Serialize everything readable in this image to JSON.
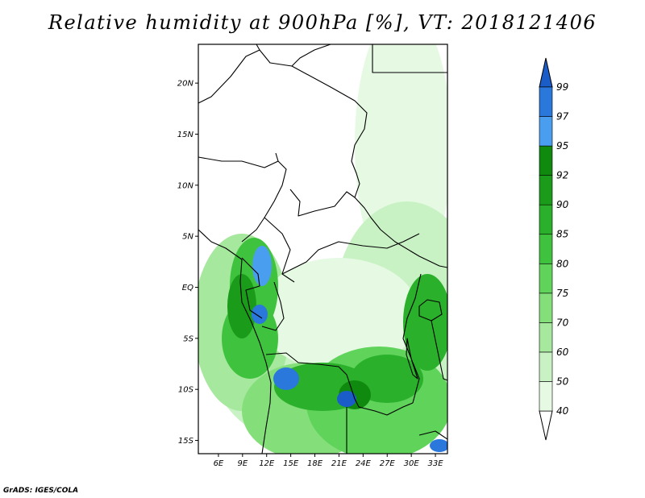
{
  "title": "Relative humidity at 900hPa [%], VT: 2018121406",
  "footer": "GrADS: IGES/COLA",
  "axes": {
    "lat_ticks": [
      {
        "label": "20N",
        "value": 20
      },
      {
        "label": "15N",
        "value": 15
      },
      {
        "label": "10N",
        "value": 10
      },
      {
        "label": "5N",
        "value": 5
      },
      {
        "label": "EQ",
        "value": 0
      },
      {
        "label": "5S",
        "value": -5
      },
      {
        "label": "10S",
        "value": -10
      },
      {
        "label": "15S",
        "value": -15
      }
    ],
    "lon_ticks": [
      {
        "label": "6E",
        "value": 6
      },
      {
        "label": "9E",
        "value": 9
      },
      {
        "label": "12E",
        "value": 12
      },
      {
        "label": "15E",
        "value": 15
      },
      {
        "label": "18E",
        "value": 18
      },
      {
        "label": "21E",
        "value": 21
      },
      {
        "label": "24E",
        "value": 24
      },
      {
        "label": "27E",
        "value": 27
      },
      {
        "label": "30E",
        "value": 30
      },
      {
        "label": "33E",
        "value": 33
      }
    ],
    "lon_range": [
      3.5,
      34.5
    ],
    "lat_range": [
      -16.3,
      23.8
    ]
  },
  "colorbar": {
    "levels": [
      "40",
      "50",
      "60",
      "70",
      "75",
      "80",
      "85",
      "90",
      "92",
      "95",
      "97",
      "99"
    ],
    "colors": [
      "#ffffff",
      "#e5f9e3",
      "#c9f2c4",
      "#a6e89e",
      "#84df7a",
      "#5fd35a",
      "#3fc33e",
      "#2ab02a",
      "#1a9b1a",
      "#0f8a0f",
      "#4a9ef0",
      "#2a78dc",
      "#1a5cc8"
    ]
  },
  "colors": {
    "frame": "#000000",
    "border": "#000000"
  }
}
